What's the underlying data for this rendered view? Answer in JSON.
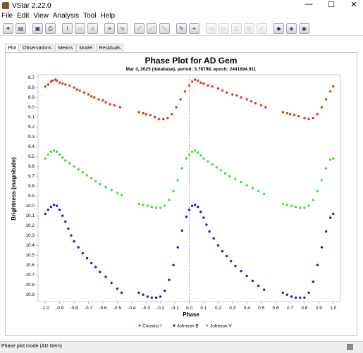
{
  "window": {
    "title": "VStar 2.22.0",
    "minimize": "—",
    "maximize": "☐",
    "close": "✕"
  },
  "menu": [
    "File",
    "Edit",
    "View",
    "Analysis",
    "Tool",
    "Help"
  ],
  "toolbar_icons": [
    "new-star-icon",
    "open-file-icon",
    "save-icon",
    "print-icon",
    "info-icon",
    "plot-icon",
    "zoom-icon",
    "stats-icon",
    "wave-icon",
    "chart-a-icon",
    "chart-b-icon",
    "chart-c-icon",
    "tool-a-icon",
    "tool-b-icon",
    "back-icon",
    "forward-icon",
    "up-icon",
    "down-icon",
    "check-icon",
    "plugin-a-icon",
    "plugin-b-icon",
    "plugin-c-icon"
  ],
  "tabs": [
    "Plot",
    "Observations",
    "Means",
    "Model",
    "Residuals"
  ],
  "status": "Phase plot mode (AD Gem)",
  "chart_data": {
    "type": "scatter",
    "title": "Phase Plot for AD Gem",
    "subtitle": "Mar 3, 2025 (database), period: 3.78798, epoch: 2441694.911",
    "xlabel": "Phase",
    "ylabel": "Brightness (magnitude)",
    "xlim": [
      -1.05,
      1.05
    ],
    "ylim": [
      10.97,
      8.67
    ],
    "y_inverted": true,
    "x_ticks": [
      "-1.0",
      "-0.9",
      "-0.8",
      "-0.7",
      "-0.6",
      "-0.5",
      "-0.4",
      "-0.3",
      "-0.2",
      "-0.1",
      "0.0",
      "0.1",
      "0.2",
      "0.3",
      "0.4",
      "0.5",
      "0.6",
      "0.7",
      "0.8",
      "0.9",
      "1.0"
    ],
    "y_ticks": [
      "8.7",
      "8.8",
      "8.9",
      "9.0",
      "9.1",
      "9.2",
      "9.3",
      "9.4",
      "9.5",
      "9.6",
      "9.7",
      "9.8",
      "9.9",
      "10.0",
      "10.1",
      "10.2",
      "10.3",
      "10.4",
      "10.5",
      "10.6",
      "10.7",
      "10.8",
      "10.9"
    ],
    "legend_position": "bottom",
    "series": [
      {
        "name": "Cousins I",
        "color": "#e8380d",
        "points": [
          [
            -1.0,
            8.79
          ],
          [
            -0.98,
            8.77
          ],
          [
            -0.96,
            8.74
          ],
          [
            -0.95,
            8.73
          ],
          [
            -0.93,
            8.72
          ],
          [
            -0.92,
            8.73
          ],
          [
            -0.9,
            8.75
          ],
          [
            -0.88,
            8.76
          ],
          [
            -0.86,
            8.77
          ],
          [
            -0.83,
            8.78
          ],
          [
            -0.8,
            8.8
          ],
          [
            -0.78,
            8.82
          ],
          [
            -0.76,
            8.83
          ],
          [
            -0.73,
            8.85
          ],
          [
            -0.7,
            8.87
          ],
          [
            -0.68,
            8.89
          ],
          [
            -0.66,
            8.9
          ],
          [
            -0.63,
            8.92
          ],
          [
            -0.6,
            8.93
          ],
          [
            -0.58,
            8.95
          ],
          [
            -0.55,
            8.97
          ],
          [
            -0.52,
            8.98
          ],
          [
            -0.48,
            9.0
          ],
          [
            -0.35,
            9.05
          ],
          [
            -0.32,
            9.06
          ],
          [
            -0.3,
            9.07
          ],
          [
            -0.27,
            9.08
          ],
          [
            -0.24,
            9.1
          ],
          [
            -0.21,
            9.12
          ],
          [
            -0.18,
            9.12
          ],
          [
            -0.15,
            9.11
          ],
          [
            -0.12,
            9.07
          ],
          [
            -0.09,
            9.0
          ],
          [
            -0.06,
            8.92
          ],
          [
            -0.03,
            8.84
          ],
          [
            0.0,
            8.78
          ],
          [
            0.02,
            8.74
          ],
          [
            0.04,
            8.72
          ],
          [
            0.06,
            8.73
          ],
          [
            0.08,
            8.75
          ],
          [
            0.1,
            8.76
          ],
          [
            0.13,
            8.78
          ],
          [
            0.16,
            8.79
          ],
          [
            0.2,
            8.81
          ],
          [
            0.23,
            8.83
          ],
          [
            0.26,
            8.85
          ],
          [
            0.3,
            8.87
          ],
          [
            0.33,
            8.88
          ],
          [
            0.36,
            8.9
          ],
          [
            0.4,
            8.92
          ],
          [
            0.43,
            8.94
          ],
          [
            0.46,
            8.96
          ],
          [
            0.5,
            8.98
          ],
          [
            0.53,
            9.0
          ],
          [
            0.65,
            9.05
          ],
          [
            0.68,
            9.06
          ],
          [
            0.7,
            9.07
          ],
          [
            0.73,
            9.08
          ],
          [
            0.76,
            9.09
          ],
          [
            0.8,
            9.11
          ],
          [
            0.83,
            9.12
          ],
          [
            0.86,
            9.11
          ],
          [
            0.89,
            9.07
          ],
          [
            0.92,
            9.0
          ],
          [
            0.95,
            8.92
          ],
          [
            0.98,
            8.84
          ],
          [
            1.0,
            8.79
          ]
        ]
      },
      {
        "name": "Johnson B",
        "color": "#1a1adc",
        "points": [
          [
            -1.0,
            10.08
          ],
          [
            -0.98,
            10.04
          ],
          [
            -0.96,
            10.01
          ],
          [
            -0.94,
            9.99
          ],
          [
            -0.92,
            10.0
          ],
          [
            -0.9,
            10.04
          ],
          [
            -0.88,
            10.1
          ],
          [
            -0.86,
            10.16
          ],
          [
            -0.84,
            10.23
          ],
          [
            -0.82,
            10.3
          ],
          [
            -0.8,
            10.36
          ],
          [
            -0.77,
            10.42
          ],
          [
            -0.74,
            10.48
          ],
          [
            -0.71,
            10.53
          ],
          [
            -0.68,
            10.58
          ],
          [
            -0.65,
            10.62
          ],
          [
            -0.62,
            10.67
          ],
          [
            -0.58,
            10.72
          ],
          [
            -0.54,
            10.78
          ],
          [
            -0.5,
            10.84
          ],
          [
            -0.47,
            10.88
          ],
          [
            -0.35,
            10.88
          ],
          [
            -0.32,
            10.9
          ],
          [
            -0.29,
            10.92
          ],
          [
            -0.26,
            10.93
          ],
          [
            -0.23,
            10.93
          ],
          [
            -0.2,
            10.92
          ],
          [
            -0.17,
            10.86
          ],
          [
            -0.14,
            10.75
          ],
          [
            -0.11,
            10.6
          ],
          [
            -0.08,
            10.42
          ],
          [
            -0.05,
            10.25
          ],
          [
            -0.02,
            10.11
          ],
          [
            0.0,
            10.04
          ],
          [
            0.02,
            10.0
          ],
          [
            0.04,
            9.99
          ],
          [
            0.06,
            10.01
          ],
          [
            0.08,
            10.06
          ],
          [
            0.1,
            10.12
          ],
          [
            0.12,
            10.19
          ],
          [
            0.14,
            10.26
          ],
          [
            0.17,
            10.33
          ],
          [
            0.2,
            10.4
          ],
          [
            0.23,
            10.46
          ],
          [
            0.26,
            10.51
          ],
          [
            0.29,
            10.56
          ],
          [
            0.32,
            10.61
          ],
          [
            0.36,
            10.66
          ],
          [
            0.4,
            10.71
          ],
          [
            0.44,
            10.76
          ],
          [
            0.48,
            10.81
          ],
          [
            0.52,
            10.85
          ],
          [
            0.65,
            10.88
          ],
          [
            0.68,
            10.9
          ],
          [
            0.71,
            10.92
          ],
          [
            0.74,
            10.93
          ],
          [
            0.77,
            10.93
          ],
          [
            0.8,
            10.93
          ],
          [
            0.83,
            10.88
          ],
          [
            0.86,
            10.77
          ],
          [
            0.89,
            10.6
          ],
          [
            0.92,
            10.42
          ],
          [
            0.95,
            10.26
          ],
          [
            0.98,
            10.12
          ],
          [
            1.0,
            10.08
          ]
        ]
      },
      {
        "name": "Johnson V",
        "color": "#33e33a",
        "points": [
          [
            -1.0,
            9.52
          ],
          [
            -0.98,
            9.48
          ],
          [
            -0.96,
            9.45
          ],
          [
            -0.94,
            9.44
          ],
          [
            -0.92,
            9.45
          ],
          [
            -0.9,
            9.48
          ],
          [
            -0.88,
            9.51
          ],
          [
            -0.86,
            9.54
          ],
          [
            -0.83,
            9.57
          ],
          [
            -0.8,
            9.6
          ],
          [
            -0.77,
            9.63
          ],
          [
            -0.74,
            9.66
          ],
          [
            -0.71,
            9.69
          ],
          [
            -0.68,
            9.72
          ],
          [
            -0.65,
            9.75
          ],
          [
            -0.62,
            9.78
          ],
          [
            -0.58,
            9.81
          ],
          [
            -0.54,
            9.84
          ],
          [
            -0.5,
            9.87
          ],
          [
            -0.47,
            9.89
          ],
          [
            -0.35,
            9.98
          ],
          [
            -0.32,
            9.99
          ],
          [
            -0.29,
            10.0
          ],
          [
            -0.26,
            10.01
          ],
          [
            -0.23,
            10.02
          ],
          [
            -0.2,
            10.02
          ],
          [
            -0.17,
            10.0
          ],
          [
            -0.14,
            9.94
          ],
          [
            -0.11,
            9.85
          ],
          [
            -0.08,
            9.74
          ],
          [
            -0.05,
            9.62
          ],
          [
            -0.02,
            9.52
          ],
          [
            0.0,
            9.48
          ],
          [
            0.02,
            9.45
          ],
          [
            0.04,
            9.44
          ],
          [
            0.06,
            9.46
          ],
          [
            0.08,
            9.49
          ],
          [
            0.1,
            9.52
          ],
          [
            0.13,
            9.55
          ],
          [
            0.16,
            9.58
          ],
          [
            0.19,
            9.61
          ],
          [
            0.22,
            9.64
          ],
          [
            0.25,
            9.67
          ],
          [
            0.28,
            9.7
          ],
          [
            0.32,
            9.73
          ],
          [
            0.36,
            9.76
          ],
          [
            0.4,
            9.79
          ],
          [
            0.44,
            9.82
          ],
          [
            0.48,
            9.85
          ],
          [
            0.52,
            9.88
          ],
          [
            0.65,
            9.98
          ],
          [
            0.68,
            9.99
          ],
          [
            0.71,
            10.0
          ],
          [
            0.74,
            10.01
          ],
          [
            0.77,
            10.02
          ],
          [
            0.8,
            10.02
          ],
          [
            0.83,
            10.0
          ],
          [
            0.86,
            9.94
          ],
          [
            0.89,
            9.85
          ],
          [
            0.92,
            9.74
          ],
          [
            0.95,
            9.62
          ],
          [
            0.98,
            9.53
          ],
          [
            1.0,
            9.52
          ]
        ]
      }
    ]
  }
}
